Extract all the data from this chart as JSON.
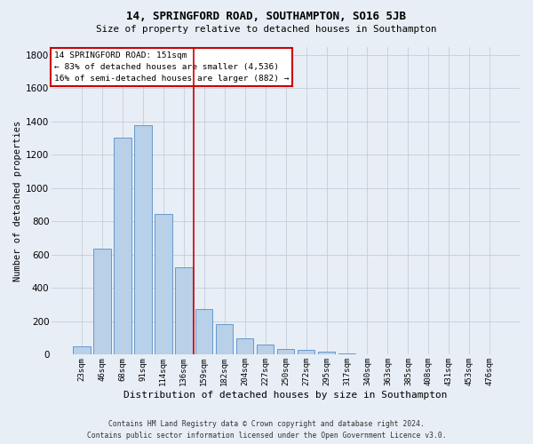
{
  "title": "14, SPRINGFORD ROAD, SOUTHAMPTON, SO16 5JB",
  "subtitle": "Size of property relative to detached houses in Southampton",
  "xlabel": "Distribution of detached houses by size in Southampton",
  "ylabel": "Number of detached properties",
  "bar_values": [
    50,
    635,
    1305,
    1380,
    845,
    525,
    275,
    185,
    100,
    60,
    35,
    30,
    20,
    10,
    0,
    0,
    0,
    0,
    0,
    0,
    0
  ],
  "bar_labels": [
    "23sqm",
    "46sqm",
    "68sqm",
    "91sqm",
    "114sqm",
    "136sqm",
    "159sqm",
    "182sqm",
    "204sqm",
    "227sqm",
    "250sqm",
    "272sqm",
    "295sqm",
    "317sqm",
    "340sqm",
    "363sqm",
    "385sqm",
    "408sqm",
    "431sqm",
    "453sqm",
    "476sqm"
  ],
  "bar_color": "#b8d0e8",
  "bar_edge_color": "#6699cc",
  "vline_x": 5.5,
  "vline_color": "#cc0000",
  "annotation_text": "14 SPRINGFORD ROAD: 151sqm\n← 83% of detached houses are smaller (4,536)\n16% of semi-detached houses are larger (882) →",
  "annotation_box_color": "#ffffff",
  "annotation_box_edge": "#cc0000",
  "ylim": [
    0,
    1850
  ],
  "yticks": [
    0,
    200,
    400,
    600,
    800,
    1000,
    1200,
    1400,
    1600,
    1800
  ],
  "footer_line1": "Contains HM Land Registry data © Crown copyright and database right 2024.",
  "footer_line2": "Contains public sector information licensed under the Open Government Licence v3.0.",
  "background_color": "#e8eef5",
  "grid_color": "#c5cdd8"
}
